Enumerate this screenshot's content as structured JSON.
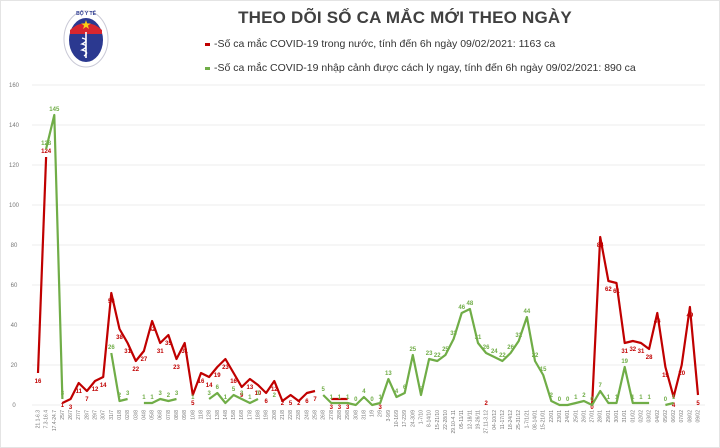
{
  "header": {
    "title": "THEO DÕI SỐ CA MẮC MỚI THEO NGÀY",
    "logo": {
      "top_text": "BỘ Y TẾ",
      "bottom_text": "MINISTRY OF HEALTH",
      "icon": "caduceus-icon"
    }
  },
  "legend": [
    {
      "label": "-Số ca mắc COVID-19 trong nước, tính đến 6h ngày 09/02/2021: 1163 ca",
      "color": "#c00000"
    },
    {
      "label": "-Số ca mắc COVID-19 nhập cảnh được cách ly ngay, tính đến 6h ngày 09/02/2021: 890 ca",
      "color": "#70ad47"
    }
  ],
  "chart_data": {
    "type": "line",
    "title": "THEO DÕI SỐ CA MẮC MỚI THEO NGÀY",
    "xlabel": "",
    "ylabel": "",
    "ylim": [
      0,
      160
    ],
    "yticks": [
      0,
      20,
      40,
      60,
      80,
      100,
      120,
      140,
      160
    ],
    "grid": true,
    "legend_position": "top",
    "categories": [
      "21.1-6.3",
      "7.3-16.4",
      "17.4-24.7",
      "25/7",
      "26/7",
      "27/7",
      "28/7",
      "29/7",
      "30/7",
      "31/7",
      "01/8",
      "02/8",
      "03/8",
      "04/8",
      "05/8",
      "06/8",
      "07/8",
      "08/8",
      "09/8",
      "10/8",
      "11/8",
      "12/8",
      "13/8",
      "14/8",
      "15/8",
      "16/8",
      "17/8",
      "18/8",
      "19/8",
      "20/8",
      "21/8",
      "22/8",
      "23/8",
      "24/8",
      "25/8",
      "26/8",
      "27/8",
      "28/8",
      "29/8",
      "30/8",
      "31/8",
      "1/9",
      "2/9",
      "3-9/9",
      "10-16/9",
      "17-23/9",
      "24-30/9",
      "1-7/10",
      "8-14/10",
      "15-21/10",
      "22-28/10",
      "29.10-4.11",
      "05-11/11",
      "12-18/11",
      "19-26/11",
      "27.11-3.12",
      "04-10/12",
      "11-17/12",
      "18-24/12",
      "25-31/12",
      "1-7/1/21",
      "08-14/01",
      "15-21/01",
      "22/01",
      "23/01",
      "24/01",
      "25/01",
      "26/01",
      "27/01",
      "28/01",
      "29/01",
      "30/01",
      "31/01",
      "01/02",
      "02/02",
      "03/02",
      "04/02",
      "05/02",
      "06/02",
      "07/02",
      "08/02",
      "09/02"
    ],
    "series": [
      {
        "name": "Trong nước",
        "color": "#c00000",
        "values": [
          16,
          124,
          null,
          1,
          3,
          11,
          7,
          12,
          14,
          56,
          38,
          31,
          22,
          27,
          42,
          31,
          35,
          23,
          31,
          5,
          16,
          14,
          19,
          23,
          16,
          9,
          13,
          10,
          6,
          12,
          2,
          5,
          2,
          6,
          7,
          null,
          3,
          3,
          3,
          null,
          null,
          null,
          3,
          null,
          null,
          null,
          null,
          null,
          null,
          null,
          null,
          null,
          null,
          null,
          null,
          2,
          null,
          null,
          null,
          null,
          null,
          null,
          null,
          null,
          null,
          null,
          null,
          null,
          0,
          84,
          62,
          61,
          31,
          32,
          31,
          28,
          46,
          19,
          4,
          20,
          49,
          5
        ]
      },
      {
        "name": "Nhập cảnh",
        "color": "#70ad47",
        "values": [
          null,
          128,
          145,
          3,
          null,
          null,
          null,
          null,
          null,
          26,
          2,
          3,
          null,
          1,
          1,
          3,
          2,
          3,
          null,
          1,
          null,
          3,
          6,
          1,
          5,
          3,
          1,
          3,
          null,
          2,
          null,
          null,
          null,
          null,
          null,
          5,
          1,
          1,
          1,
          0,
          4,
          0,
          1,
          13,
          4,
          6,
          25,
          5,
          23,
          22,
          25,
          33,
          46,
          48,
          31,
          26,
          24,
          22,
          26,
          32,
          44,
          22,
          15,
          2,
          0,
          0,
          1,
          2,
          0,
          7,
          1,
          1,
          19,
          1,
          1,
          1,
          null,
          0,
          1,
          null,
          null,
          null
        ]
      }
    ]
  }
}
